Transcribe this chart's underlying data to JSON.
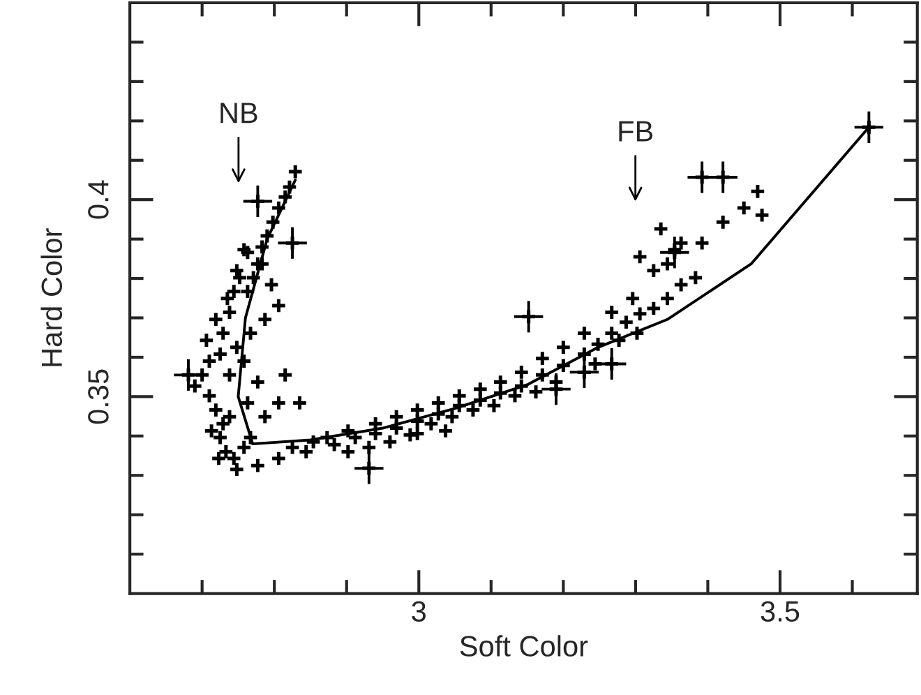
{
  "chart_data": {
    "type": "scatter",
    "xlabel": "Soft Color",
    "ylabel": "Hard Color",
    "xlim": [
      2.6,
      3.69
    ],
    "ylim": [
      0.3,
      0.45
    ],
    "xticks": [
      {
        "value": 2.7,
        "label": null
      },
      {
        "value": 2.8,
        "label": null
      },
      {
        "value": 2.9,
        "label": null
      },
      3,
      {
        "value": 3.1,
        "label": null
      },
      {
        "value": 3.2,
        "label": null
      },
      {
        "value": 3.3,
        "label": null
      },
      {
        "value": 3.4,
        "label": null
      },
      3.5,
      {
        "value": 3.6,
        "label": null
      }
    ],
    "yticks": [
      {
        "value": 0.31,
        "label": null
      },
      {
        "value": 0.32,
        "label": null
      },
      {
        "value": 0.33,
        "label": null
      },
      {
        "value": 0.34,
        "label": null
      },
      0.35,
      {
        "value": 0.36,
        "label": null
      },
      {
        "value": 0.37,
        "label": null
      },
      {
        "value": 0.38,
        "label": null
      },
      {
        "value": 0.39,
        "label": null
      },
      0.4,
      {
        "value": 0.41,
        "label": null
      },
      {
        "value": 0.42,
        "label": null
      },
      {
        "value": 0.43,
        "label": null
      },
      {
        "value": 0.44,
        "label": null
      }
    ],
    "grid": false,
    "marker": "cross",
    "annotations": [
      "NB",
      "FB"
    ],
    "series": [
      {
        "color": "#000000",
        "x": [
          2.829,
          2.821,
          2.815,
          2.806,
          2.798,
          2.79,
          2.783,
          2.777,
          2.771,
          2.763,
          2.758,
          2.748,
          2.744,
          2.738,
          2.729,
          2.725,
          2.71,
          2.7,
          2.69,
          2.71,
          2.719,
          2.729,
          2.725,
          2.733,
          2.744,
          2.758,
          2.767,
          2.787,
          2.806,
          2.777,
          2.758,
          2.748,
          2.767,
          2.787,
          2.806,
          2.796,
          2.783,
          2.763,
          2.752,
          2.735,
          2.719,
          2.706,
          2.738,
          2.763,
          2.738,
          2.713,
          2.723,
          2.748,
          2.777,
          2.806,
          2.825,
          2.854,
          2.835,
          2.815,
          2.844,
          2.883,
          2.912,
          2.94,
          2.969,
          2.998,
          3.027,
          3.056,
          3.085,
          3.113,
          3.142,
          3.171,
          3.2,
          3.229,
          3.248,
          3.267,
          3.287,
          3.306,
          3.325,
          3.344,
          3.363,
          3.383,
          2.902,
          2.931,
          2.96,
          2.988,
          3.017,
          3.046,
          3.075,
          3.104,
          3.133,
          3.162,
          3.19,
          3.244,
          3.277,
          3.302,
          3.325,
          3.344,
          3.354,
          3.363,
          3.296,
          3.267,
          3.229,
          3.2,
          3.171,
          3.142,
          3.113,
          3.085,
          3.056,
          3.027,
          2.998,
          2.969,
          2.94,
          2.902,
          2.873,
          3.037,
          2.998,
          3.306,
          3.335,
          3.421,
          3.45,
          3.469,
          3.475,
          3.392
        ],
        "values": [
          0.4071,
          0.4032,
          0.4007,
          0.3979,
          0.3943,
          0.3908,
          0.388,
          0.3837,
          0.3802,
          0.3767,
          0.3873,
          0.382,
          0.3767,
          0.3714,
          0.3661,
          0.3608,
          0.359,
          0.3555,
          0.3527,
          0.3502,
          0.3466,
          0.3431,
          0.3396,
          0.336,
          0.3343,
          0.3371,
          0.3396,
          0.3449,
          0.3484,
          0.3537,
          0.359,
          0.3625,
          0.3661,
          0.3696,
          0.3731,
          0.3784,
          0.3837,
          0.3866,
          0.3802,
          0.3749,
          0.3696,
          0.3643,
          0.3555,
          0.3484,
          0.3449,
          0.3413,
          0.3343,
          0.3315,
          0.3325,
          0.3343,
          0.3371,
          0.3385,
          0.3484,
          0.3555,
          0.336,
          0.3378,
          0.3396,
          0.3406,
          0.342,
          0.3438,
          0.3456,
          0.3477,
          0.3491,
          0.3509,
          0.3527,
          0.3555,
          0.3579,
          0.3608,
          0.3633,
          0.3661,
          0.3689,
          0.371,
          0.3724,
          0.3749,
          0.3784,
          0.3802,
          0.336,
          0.3371,
          0.3385,
          0.3403,
          0.3431,
          0.3449,
          0.3466,
          0.3477,
          0.3502,
          0.3512,
          0.3537,
          0.3583,
          0.3643,
          0.3661,
          0.382,
          0.3837,
          0.3873,
          0.389,
          0.3749,
          0.3714,
          0.3661,
          0.3625,
          0.3597,
          0.3562,
          0.3537,
          0.3519,
          0.3502,
          0.3484,
          0.3466,
          0.3449,
          0.3431,
          0.3413,
          0.3396,
          0.3413,
          0.3406,
          0.3855,
          0.3926,
          0.3943,
          0.3979,
          0.4021,
          0.3961,
          0.389
        ]
      },
      {
        "color": "#000000",
        "x": [
          2.777,
          2.825,
          2.681,
          3.152,
          3.229,
          2.931,
          3.354,
          3.392,
          3.421,
          3.19,
          3.267,
          3.623
        ],
        "values": [
          0.3996,
          0.389,
          0.3555,
          0.3703,
          0.3562,
          0.3318,
          0.3866,
          0.4057,
          0.4057,
          0.3519,
          0.3583,
          0.4184
        ],
        "errors": [
          0.004,
          0.004,
          0.004,
          0.004,
          0.004,
          0.004,
          0.004,
          0.004,
          0.004,
          0.004,
          0.004,
          0.004
        ],
        "xerrors": [
          0.02,
          0.02,
          0.02,
          0.02,
          0.02,
          0.02,
          0.02,
          0.02,
          0.02,
          0.02,
          0.02,
          0.02
        ]
      },
      {
        "type": "line",
        "color": "#000000",
        "line_style": "solid",
        "marker": "none",
        "x": [
          2.829,
          2.79,
          2.76,
          2.75,
          2.77,
          2.85,
          2.95,
          3.05,
          3.15,
          3.248,
          3.344,
          3.46,
          3.623
        ],
        "values": [
          0.405,
          0.39,
          0.37,
          0.35,
          0.338,
          0.339,
          0.342,
          0.347,
          0.353,
          0.3625,
          0.3696,
          0.3837,
          0.4184
        ]
      }
    ]
  }
}
